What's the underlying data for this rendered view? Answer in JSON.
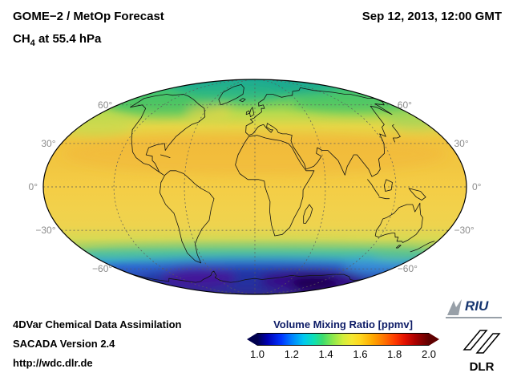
{
  "header": {
    "title": "GOME−2 / MetOp Forecast",
    "species": "CH",
    "species_sub": "4",
    "level": " at 55.4 hPa",
    "datetime": "Sep 12, 2013, 12:00 GMT"
  },
  "map": {
    "lat_lines": [
      {
        "lat": 60,
        "label": "60°"
      },
      {
        "lat": 30,
        "label": "30°"
      },
      {
        "lat": 0,
        "label": "0°"
      },
      {
        "lat": -30,
        "label": "−30°"
      },
      {
        "lat": -60,
        "label": "−60°"
      }
    ],
    "lon_lines": [
      -120,
      -60,
      0,
      60,
      120
    ]
  },
  "footer": {
    "line1": "4DVar Chemical Data Assimilation",
    "line2": "SACADA Version 2.4",
    "line3": "http://wdc.dlr.de"
  },
  "colorbar": {
    "title": "Volume Mixing Ratio [ppmv]",
    "ticks": [
      "1.0",
      "1.2",
      "1.4",
      "1.6",
      "1.8",
      "2.0"
    ]
  },
  "logos": {
    "riu": "RIU",
    "dlr": "DLR"
  },
  "chart_data": {
    "type": "heatmap",
    "title": "GOME−2 / MetOp Forecast — CH4 at 55.4 hPa",
    "datetime": "Sep 12, 2013, 12:00 GMT",
    "projection": "Mollweide global map",
    "variable": "CH4 volume mixing ratio",
    "units": "ppmv",
    "colorbar": {
      "label": "Volume Mixing Ratio [ppmv]",
      "min": 1.0,
      "max": 2.0,
      "ticks": [
        1.0,
        1.2,
        1.4,
        1.6,
        1.8,
        2.0
      ],
      "palette": [
        "#00004d",
        "#0034ff",
        "#00c8f0",
        "#3cdc6e",
        "#d2ee3c",
        "#ffd71e",
        "#ff7300",
        "#e31000",
        "#5f0000"
      ]
    },
    "lat_gridlines_deg": [
      60,
      30,
      0,
      -30,
      -60
    ],
    "lon_gridlines_deg": [
      -120,
      -60,
      0,
      60,
      120
    ],
    "approx_values_by_latitude": [
      {
        "lat_band": "75N–90N",
        "value_ppmv": 1.4
      },
      {
        "lat_band": "60N–75N",
        "value_ppmv": 1.45
      },
      {
        "lat_band": "45N–60N",
        "value_ppmv": 1.55
      },
      {
        "lat_band": "15N–45N",
        "value_ppmv": 1.65
      },
      {
        "lat_band": "15S–15N",
        "value_ppmv": 1.6
      },
      {
        "lat_band": "40S–15S",
        "value_ppmv": 1.6
      },
      {
        "lat_band": "55S–40S",
        "value_ppmv": 1.45
      },
      {
        "lat_band": "65S–55S",
        "value_ppmv": 1.25
      },
      {
        "lat_band": "90S–65S",
        "value_ppmv": 1.05
      }
    ],
    "features": [
      "Antarctic polar vortex minimum (~1.0–1.1 ppmv, dark blue/purple) poleward of 60S with deepest core near 30W–60E",
      "Broad elevated CH4 (~1.6–1.7 ppmv, yellow-orange) across tropics and northern mid-latitudes",
      "Moderate values (~1.4–1.5 ppmv, green/teal) over the Arctic cap"
    ]
  }
}
